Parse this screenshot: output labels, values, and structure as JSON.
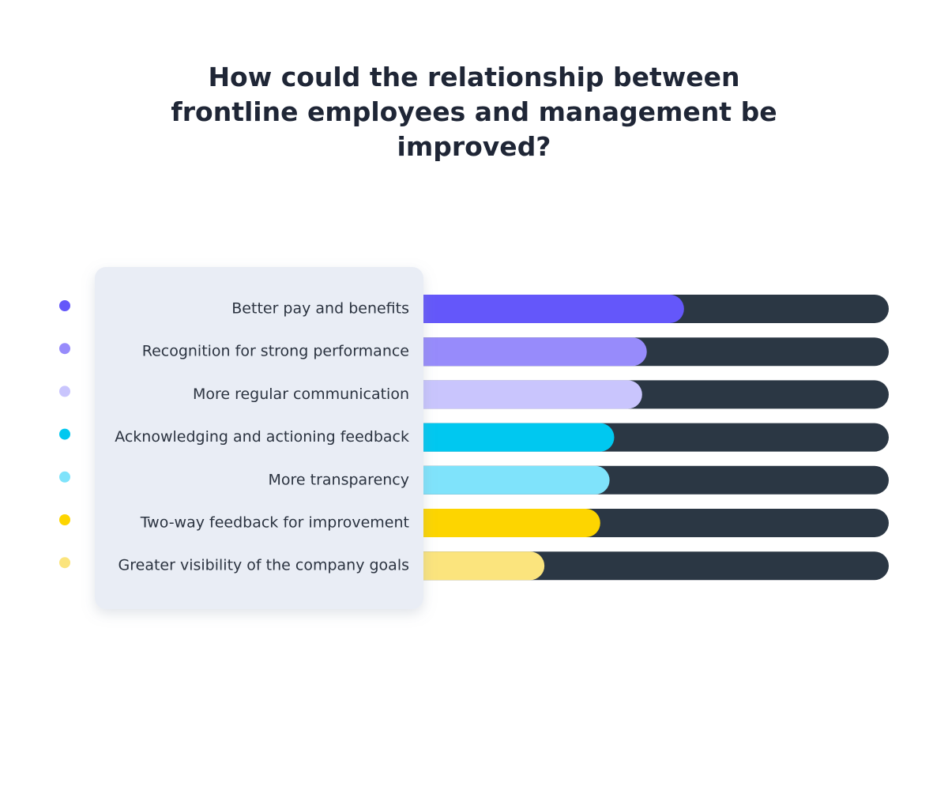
{
  "chart_data": {
    "type": "bar",
    "orientation": "horizontal",
    "title": "How could the relationship between frontline employees and management be improved?",
    "categories": [
      "Better pay and benefits",
      "Recognition for strong performance",
      "More regular communication",
      "Acknowledging and actioning feedback",
      "More transparency",
      "Two-way feedback for improvement",
      "Greater visibility of the company goals"
    ],
    "values": [
      56,
      48,
      47,
      41,
      40,
      38,
      26
    ],
    "colors": [
      "#6457fa",
      "#978bfb",
      "#c9c5fd",
      "#00c8f0",
      "#7fe3fb",
      "#fdd500",
      "#fbe47d"
    ],
    "track_color": "#2b3744",
    "xlim": [
      0,
      100
    ]
  }
}
